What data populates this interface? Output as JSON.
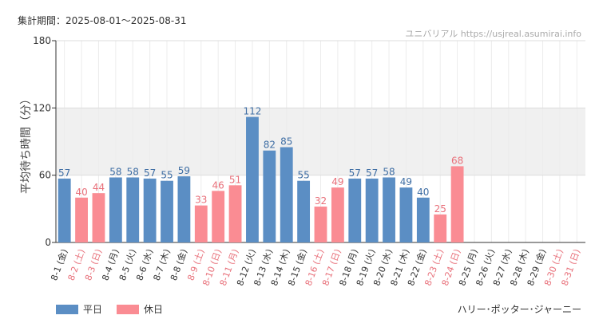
{
  "header": {
    "period_label": "集計期間：2025-08-01〜2025-08-31",
    "site": "ユニバリアル https://usjreal.asumirai.info"
  },
  "legend": {
    "weekday_label": "平日",
    "holiday_label": "休日"
  },
  "attraction": "ハリー･ポッター･ジャーニー",
  "chart_data": {
    "type": "bar",
    "ylabel": "平均待ち時間（分）",
    "ylim": [
      0,
      180
    ],
    "yticks": [
      0,
      60,
      120,
      180
    ],
    "categories": [
      "8-1 (金)",
      "8-2 (土)",
      "8-3 (日)",
      "8-4 (月)",
      "8-5 (火)",
      "8-6 (水)",
      "8-7 (木)",
      "8-8 (金)",
      "8-9 (土)",
      "8-10 (日)",
      "8-11 (月)",
      "8-12 (火)",
      "8-13 (水)",
      "8-14 (木)",
      "8-15 (金)",
      "8-16 (土)",
      "8-17 (日)",
      "8-18 (月)",
      "8-19 (火)",
      "8-20 (水)",
      "8-21 (木)",
      "8-22 (金)",
      "8-23 (土)",
      "8-24 (日)",
      "8-25 (月)",
      "8-26 (火)",
      "8-27 (水)",
      "8-28 (木)",
      "8-29 (金)",
      "8-30 (土)",
      "8-31 (日)"
    ],
    "values": [
      57,
      40,
      44,
      58,
      58,
      57,
      55,
      59,
      33,
      46,
      51,
      112,
      82,
      85,
      55,
      32,
      49,
      57,
      57,
      58,
      49,
      40,
      25,
      68,
      null,
      null,
      null,
      null,
      null,
      null,
      null
    ],
    "holiday": [
      false,
      true,
      true,
      false,
      false,
      false,
      false,
      false,
      true,
      true,
      true,
      false,
      false,
      false,
      false,
      true,
      true,
      false,
      false,
      false,
      false,
      false,
      true,
      true,
      false,
      false,
      false,
      false,
      false,
      true,
      true
    ],
    "colors": {
      "weekday": "#5b8ec4",
      "holiday": "#fa8c93",
      "weekday_text": "#3f6ea4",
      "holiday_text": "#e8707a",
      "band": "#f0f0f0",
      "grid": "#dddddd"
    }
  }
}
